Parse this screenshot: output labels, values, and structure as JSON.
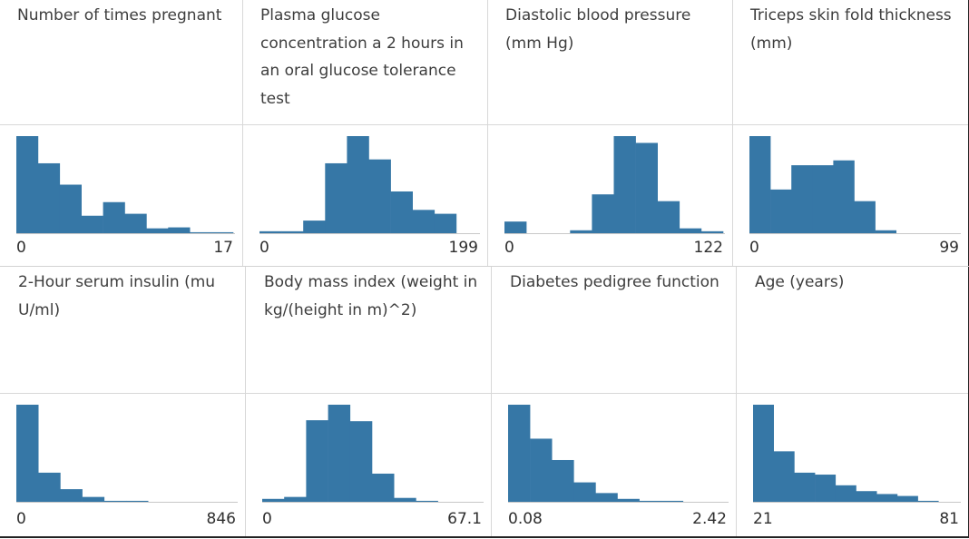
{
  "colors": {
    "bar": "#3677a6",
    "baseline": "#c8c8c8"
  },
  "features": [
    {
      "title": "Number of times pregnant",
      "min": "0",
      "max": "17"
    },
    {
      "title": "Plasma glucose concentration a 2 hours in an oral glucose tolerance test",
      "min": "0",
      "max": "199"
    },
    {
      "title": "Diastolic blood pressure (mm Hg)",
      "min": "0",
      "max": "122"
    },
    {
      "title": "Triceps skin fold thickness (mm)",
      "min": "0",
      "max": "99"
    },
    {
      "title": "2-Hour serum insulin (mu U/ml)",
      "min": "0",
      "max": "846"
    },
    {
      "title": "Body mass index (weight in kg/(height in m)^2)",
      "min": "0",
      "max": "67.1"
    },
    {
      "title": "Diabetes pedigree function",
      "min": "0.08",
      "max": "2.42"
    },
    {
      "title": "Age (years)",
      "min": "21",
      "max": "81"
    }
  ],
  "chart_data": [
    {
      "type": "bar",
      "title": "Number of times pregnant",
      "xlim": [
        0,
        17
      ],
      "values": [
        1.0,
        0.72,
        0.5,
        0.18,
        0.32,
        0.2,
        0.05,
        0.06,
        0.01,
        0.01
      ]
    },
    {
      "type": "bar",
      "title": "Plasma glucose concentration a 2 hours in an oral glucose tolerance test",
      "xlim": [
        0,
        199
      ],
      "values": [
        0.02,
        0.02,
        0.13,
        0.72,
        1.0,
        0.76,
        0.43,
        0.24,
        0.2,
        0.0
      ]
    },
    {
      "type": "bar",
      "title": "Diastolic blood pressure (mm Hg)",
      "xlim": [
        0,
        122
      ],
      "values": [
        0.12,
        0.0,
        0.0,
        0.03,
        0.4,
        1.0,
        0.93,
        0.33,
        0.05,
        0.02
      ]
    },
    {
      "type": "bar",
      "title": "Triceps skin fold thickness (mm)",
      "xlim": [
        0,
        99
      ],
      "values": [
        1.0,
        0.45,
        0.7,
        0.7,
        0.75,
        0.33,
        0.03,
        0.0,
        0.0,
        0.0
      ]
    },
    {
      "type": "bar",
      "title": "2-Hour serum insulin (mu U/ml)",
      "xlim": [
        0,
        846
      ],
      "values": [
        1.0,
        0.3,
        0.13,
        0.05,
        0.01,
        0.01,
        0.0,
        0.0,
        0.0,
        0.0
      ]
    },
    {
      "type": "bar",
      "title": "Body mass index (weight in kg/(height in m)^2)",
      "xlim": [
        0,
        67.1
      ],
      "values": [
        0.03,
        0.05,
        0.84,
        1.0,
        0.83,
        0.29,
        0.04,
        0.01,
        0.0,
        0.0
      ]
    },
    {
      "type": "bar",
      "title": "Diabetes pedigree function",
      "xlim": [
        0.08,
        2.42
      ],
      "values": [
        1.0,
        0.65,
        0.43,
        0.2,
        0.09,
        0.03,
        0.01,
        0.01,
        0.0,
        0.0
      ]
    },
    {
      "type": "bar",
      "title": "Age (years)",
      "xlim": [
        21,
        81
      ],
      "values": [
        1.0,
        0.52,
        0.3,
        0.28,
        0.17,
        0.11,
        0.08,
        0.06,
        0.01,
        0.0
      ]
    }
  ]
}
